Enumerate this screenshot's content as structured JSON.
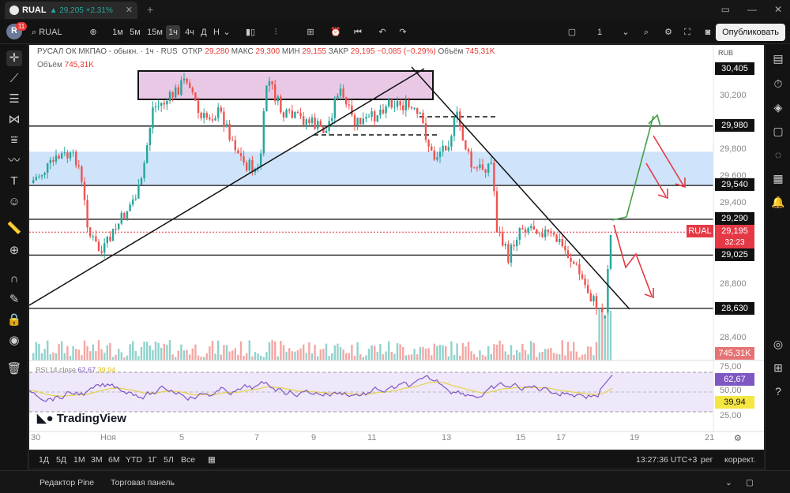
{
  "tab": {
    "symbol": "RUAL",
    "change": "▲ 29,205 +2.31%",
    "close": "✕",
    "new": "+"
  },
  "toolbar": {
    "avatar": "R",
    "badge": "11",
    "search": "RUAL",
    "timeframes": [
      "1м",
      "5м",
      "15м",
      "1ч",
      "4ч",
      "Д",
      "Н"
    ],
    "active_tf": "1ч",
    "layout_num": "1",
    "publish": "Опубликовать"
  },
  "legend": {
    "title": "РУСАЛ ОК МКПАО - обыкн. · 1ч · RUS",
    "open_label": "ОТКР",
    "open": "29,280",
    "high_label": "МАКС",
    "high": "29,300",
    "low_label": "МИН",
    "low": "29,155",
    "close_label": "ЗАКР",
    "close": "29,195",
    "change": "−0,085 (−0,29%)",
    "vol_label": "Объём",
    "vol": "745,31K",
    "volume_line_label": "Объём",
    "volume_line_value": "745,31K",
    "currency": "RUB"
  },
  "price_labels": [
    {
      "text": "30,405",
      "price": 30405,
      "style": "black"
    },
    {
      "text": "29,980",
      "price": 29980,
      "style": "black"
    },
    {
      "text": "29,540",
      "price": 29540,
      "style": "black"
    },
    {
      "text": "29,290",
      "price": 29290,
      "style": "black"
    },
    {
      "text": "29,195",
      "price": 29195,
      "style": "red"
    },
    {
      "text": "29,025",
      "price": 29025,
      "style": "black"
    },
    {
      "text": "28,630",
      "price": 28630,
      "style": "black"
    }
  ],
  "countdown": "32:23",
  "rual_tag": "RUAL",
  "price_ticks": [
    "30,200",
    "29,800",
    "29,600",
    "29,400",
    "28,800",
    "28,400"
  ],
  "volume_label": "745,31K",
  "rsi": {
    "label": "RSI 14 close",
    "value": "62,67",
    "ma": "39,94",
    "levels": [
      "75,00",
      "50,00",
      "25,00"
    ]
  },
  "dates": [
    "30",
    "Ноя",
    "5",
    "7",
    "9",
    "11",
    "13",
    "15",
    "17",
    "19",
    "21"
  ],
  "bottom": {
    "ranges": [
      "1Д",
      "5Д",
      "1М",
      "3М",
      "6М",
      "YTD",
      "1Г",
      "5Л",
      "Все"
    ],
    "time": "13:27:36 UTC+3",
    "session": "рег",
    "adjust": "коррект."
  },
  "footer": {
    "pine": "Редактор Pine",
    "panel": "Торговая панель"
  },
  "brand": "TradingView",
  "colors": {
    "up": "#26a69a",
    "down": "#ef5350",
    "rsi": "#7e57c2",
    "band": "#cfe3fa",
    "zone": "#e9c8e6"
  }
}
